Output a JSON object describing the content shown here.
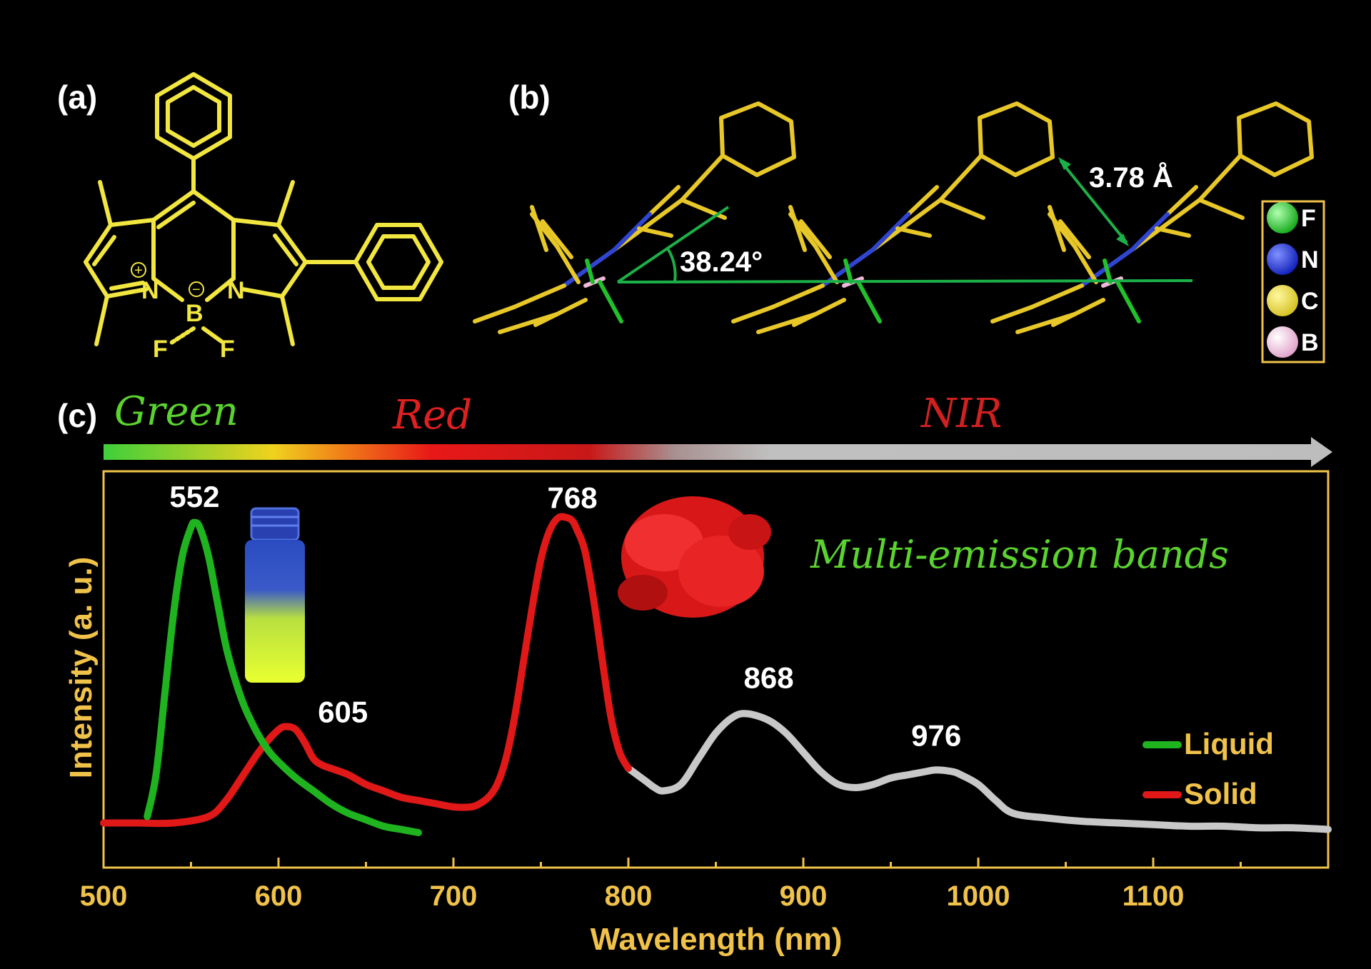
{
  "panels": {
    "a": {
      "label": "(a)"
    },
    "b": {
      "label": "(b)"
    },
    "c": {
      "label": "(c)"
    }
  },
  "molecule": {
    "atoms": {
      "n_left": "N",
      "n_right": "N",
      "boron": "B",
      "f_left": "F",
      "f_right": "F"
    },
    "charges": {
      "plus": "+",
      "minus": "−"
    },
    "color": "#f2e640"
  },
  "crystal": {
    "angle_label": "38.24°",
    "distance_label": "3.78 Å",
    "legend": [
      {
        "symbol": "F",
        "color": "#22c02a"
      },
      {
        "symbol": "N",
        "color": "#1f2fd0"
      },
      {
        "symbol": "C",
        "color": "#e8d431"
      },
      {
        "symbol": "B",
        "color": "#f0b8d8"
      }
    ]
  },
  "color_bar": {
    "labels": [
      {
        "text": "Green",
        "color": "#5bd32f"
      },
      {
        "text": "Red",
        "color": "#e02020"
      },
      {
        "text": "NIR",
        "color": "#d02020"
      }
    ]
  },
  "annotation": {
    "text": "Multi-emission bands",
    "color": "#5bd32f"
  },
  "chart_data": {
    "type": "line",
    "xlabel": "Wavelength (nm)",
    "ylabel": "Intensity (a. u.)",
    "xlim": [
      500,
      1200
    ],
    "ylim": [
      0,
      1
    ],
    "xticks": [
      500,
      600,
      700,
      800,
      900,
      1000,
      1100
    ],
    "grid": false,
    "legend_position": "right",
    "peak_labels": [
      {
        "text": "552",
        "x": 552
      },
      {
        "text": "605",
        "x": 605
      },
      {
        "text": "768",
        "x": 768
      },
      {
        "text": "868",
        "x": 868
      },
      {
        "text": "976",
        "x": 976
      }
    ],
    "series": [
      {
        "name": "Liquid",
        "color": "#1fb41f",
        "x": [
          525,
          530,
          535,
          540,
          545,
          550,
          552,
          555,
          560,
          565,
          570,
          575,
          580,
          585,
          590,
          595,
          600,
          610,
          620,
          630,
          640,
          650,
          660,
          670,
          680
        ],
        "y": [
          0.07,
          0.2,
          0.45,
          0.7,
          0.88,
          0.97,
          0.985,
          0.97,
          0.88,
          0.74,
          0.6,
          0.5,
          0.42,
          0.36,
          0.31,
          0.27,
          0.24,
          0.19,
          0.15,
          0.11,
          0.08,
          0.06,
          0.04,
          0.03,
          0.02
        ]
      },
      {
        "name": "Solid",
        "color": "#e01818",
        "x": [
          500,
          520,
          540,
          560,
          570,
          580,
          590,
          600,
          605,
          610,
          615,
          620,
          625,
          630,
          640,
          650,
          660,
          670,
          680,
          690,
          700,
          710,
          715,
          720,
          725,
          730,
          735,
          740,
          745,
          750,
          755,
          760,
          765,
          768,
          770,
          775,
          780,
          785,
          790,
          795,
          800
        ],
        "y": [
          0.05,
          0.05,
          0.05,
          0.07,
          0.12,
          0.2,
          0.28,
          0.34,
          0.35,
          0.34,
          0.3,
          0.25,
          0.23,
          0.22,
          0.2,
          0.17,
          0.15,
          0.13,
          0.12,
          0.11,
          0.1,
          0.1,
          0.11,
          0.13,
          0.17,
          0.25,
          0.38,
          0.55,
          0.72,
          0.87,
          0.96,
          1.0,
          1.0,
          0.99,
          0.97,
          0.9,
          0.75,
          0.56,
          0.38,
          0.27,
          0.22
        ]
      },
      {
        "name": "",
        "color": "#c8c8c8",
        "x": [
          800,
          810,
          815,
          820,
          830,
          840,
          850,
          860,
          868,
          880,
          890,
          900,
          910,
          920,
          930,
          940,
          950,
          960,
          970,
          976,
          985,
          990,
          1000,
          1010,
          1020,
          1040,
          1060,
          1080,
          1100,
          1120,
          1140,
          1160,
          1180,
          1200
        ],
        "y": [
          0.22,
          0.18,
          0.16,
          0.15,
          0.17,
          0.25,
          0.33,
          0.38,
          0.39,
          0.37,
          0.33,
          0.27,
          0.21,
          0.17,
          0.16,
          0.17,
          0.19,
          0.2,
          0.21,
          0.215,
          0.21,
          0.2,
          0.17,
          0.12,
          0.08,
          0.065,
          0.055,
          0.05,
          0.045,
          0.04,
          0.04,
          0.035,
          0.035,
          0.03
        ]
      }
    ]
  }
}
